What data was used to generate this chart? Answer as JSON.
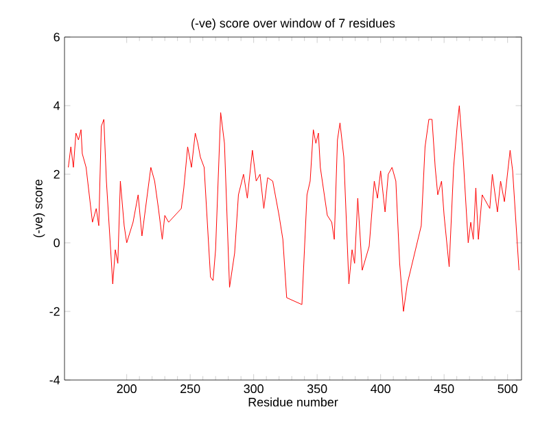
{
  "chart_data": {
    "type": "line",
    "title": "(-ve) score over window of 7 residues",
    "xlabel": "Residue number",
    "ylabel": "(-ve) score",
    "xlim": [
      151,
      511
    ],
    "ylim": [
      -4,
      6
    ],
    "xticks": [
      200,
      250,
      300,
      350,
      400,
      450,
      500
    ],
    "yticks": [
      -4,
      -2,
      0,
      2,
      4,
      6
    ],
    "grid": false,
    "marker": "none",
    "line_style": "solid",
    "series": [
      {
        "color": "#ff0000",
        "x": [
          154,
          156,
          158,
          160,
          162,
          164,
          165,
          168,
          173,
          176,
          178,
          180,
          182,
          184,
          189,
          191,
          193,
          195,
          198,
          200,
          205,
          209,
          212,
          219,
          222,
          225,
          228,
          230,
          233,
          243,
          245,
          248,
          251,
          254,
          256,
          258,
          261,
          266,
          268,
          270,
          274,
          277,
          281,
          285,
          288,
          292,
          295,
          299,
          302,
          305,
          308,
          311,
          315,
          320,
          323,
          326,
          338,
          342,
          344.5,
          347,
          349,
          351,
          352.5,
          358,
          361.5,
          363.5,
          366,
          368,
          371,
          375,
          377.5,
          379.5,
          382,
          385.5,
          391,
          395,
          397.5,
          400,
          403.5,
          406,
          409,
          412,
          415,
          418,
          421,
          432,
          435,
          438,
          440.5,
          443,
          445,
          448,
          450,
          454,
          457.5,
          460.5,
          462,
          465,
          469,
          471,
          473,
          475,
          477,
          480,
          486,
          488,
          492,
          494.5,
          497.5,
          502,
          504,
          509
        ],
        "values": [
          2.2,
          2.8,
          2.2,
          3.2,
          3.0,
          3.3,
          2.6,
          2.2,
          0.6,
          1.0,
          0.5,
          3.4,
          3.6,
          1.8,
          -1.2,
          -0.2,
          -0.6,
          1.8,
          0.5,
          0.0,
          0.6,
          1.4,
          0.2,
          2.2,
          1.8,
          1.0,
          0.1,
          0.8,
          0.6,
          1.0,
          1.6,
          2.8,
          2.2,
          3.2,
          2.9,
          2.5,
          2.2,
          -1.0,
          -1.1,
          -0.2,
          3.8,
          2.9,
          -1.3,
          -0.3,
          1.4,
          2.0,
          1.3,
          2.7,
          1.8,
          2.0,
          1.0,
          1.9,
          1.8,
          0.8,
          0.1,
          -1.6,
          -1.8,
          1.4,
          1.8,
          3.3,
          2.9,
          3.2,
          2.2,
          0.8,
          0.6,
          0.1,
          3.0,
          3.5,
          2.5,
          -1.2,
          -0.2,
          -0.6,
          1.3,
          -0.8,
          -0.1,
          1.8,
          1.3,
          2.1,
          0.9,
          2.0,
          2.2,
          1.8,
          -0.6,
          -2.0,
          -1.2,
          0.5,
          2.8,
          3.6,
          3.6,
          2.2,
          1.4,
          1.8,
          0.8,
          -0.7,
          2.2,
          3.5,
          4.0,
          2.5,
          0.0,
          0.6,
          0.1,
          1.6,
          0.1,
          1.4,
          1.0,
          2.0,
          0.9,
          1.8,
          1.2,
          2.7,
          2.1,
          -0.8
        ]
      }
    ]
  }
}
